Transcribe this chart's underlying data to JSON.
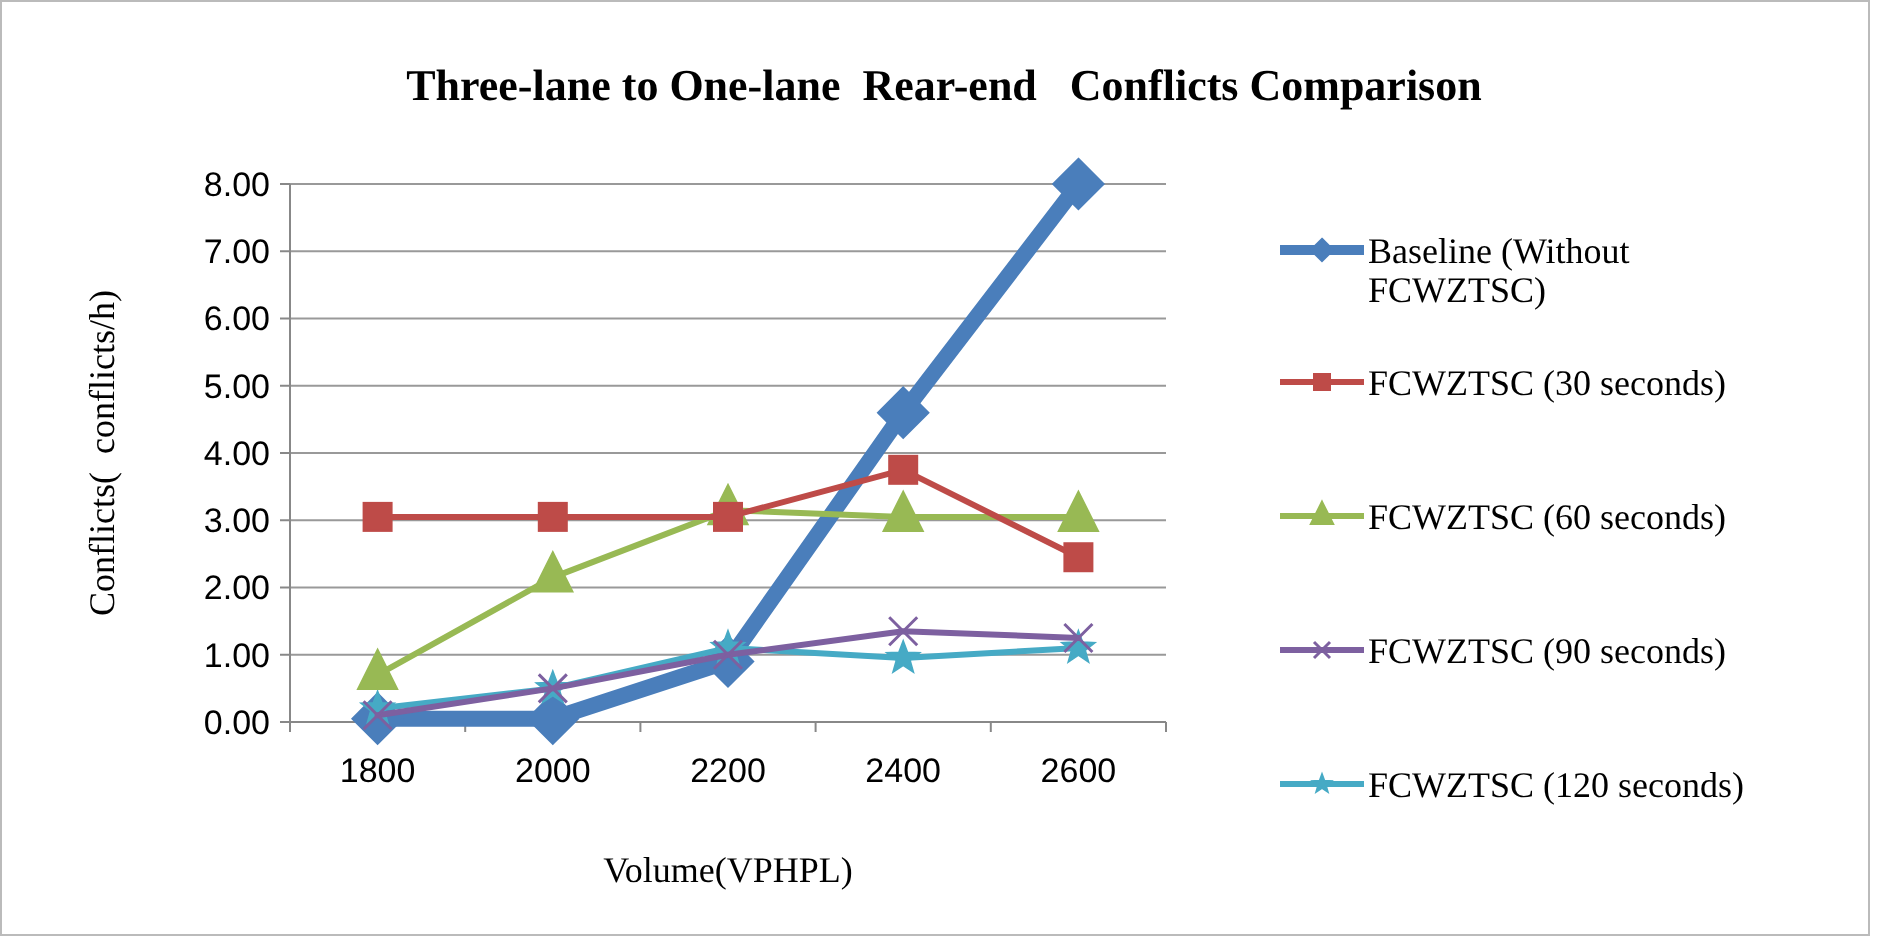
{
  "chart_data": {
    "type": "line",
    "title": "Three-lane to One-lane  Rear-end   Conflicts Comparison",
    "xlabel": "Volume(VPHPL)",
    "ylabel": "Conflicts(  conflicts/h)",
    "categories": [
      "1800",
      "2000",
      "2200",
      "2400",
      "2600"
    ],
    "ylim": [
      0,
      8
    ],
    "yticks": [
      {
        "value": 0,
        "label": "0.00"
      },
      {
        "value": 1,
        "label": "1.00"
      },
      {
        "value": 2,
        "label": "2.00"
      },
      {
        "value": 3,
        "label": "3.00"
      },
      {
        "value": 4,
        "label": "4.00"
      },
      {
        "value": 5,
        "label": "5.00"
      },
      {
        "value": 6,
        "label": "6.00"
      },
      {
        "value": 7,
        "label": "7.00"
      },
      {
        "value": 8,
        "label": "8.00"
      }
    ],
    "grid": "y",
    "legend": "right",
    "line_style": "solid",
    "series": [
      {
        "name": "Baseline (Without FCWZTSC)",
        "color": "#4a7ebb",
        "marker": "diamond",
        "values": [
          0.05,
          0.05,
          0.9,
          4.6,
          8.0
        ]
      },
      {
        "name": "FCWZTSC (30 seconds)",
        "color": "#be4b48",
        "marker": "square",
        "values": [
          3.05,
          3.05,
          3.05,
          3.75,
          2.45
        ]
      },
      {
        "name": "FCWZTSC (60 seconds)",
        "color": "#98b954",
        "marker": "triangle",
        "values": [
          0.7,
          2.15,
          3.15,
          3.05,
          3.05
        ]
      },
      {
        "name": "FCWZTSC (90 seconds)",
        "color": "#7d60a0",
        "marker": "cross",
        "values": [
          0.1,
          0.5,
          1.0,
          1.35,
          1.25
        ]
      },
      {
        "name": "FCWZTSC (120 seconds)",
        "color": "#46aac5",
        "marker": "star",
        "values": [
          0.2,
          0.5,
          1.1,
          0.95,
          1.1
        ]
      }
    ]
  }
}
